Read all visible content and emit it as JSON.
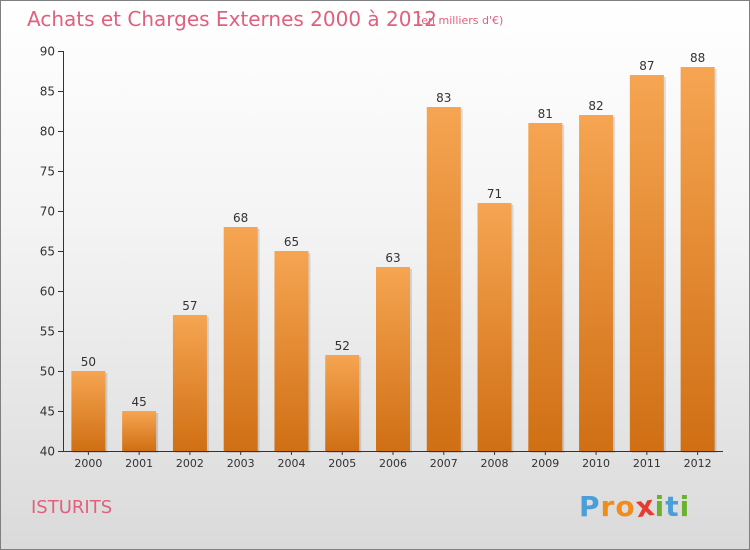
{
  "chart_data": {
    "type": "bar",
    "title": "Achats et Charges Externes 2000 à 2012",
    "subtitle": "(en milliers d'€)",
    "categories": [
      "2000",
      "2001",
      "2002",
      "2003",
      "2004",
      "2005",
      "2006",
      "2007",
      "2008",
      "2009",
      "2010",
      "2011",
      "2012"
    ],
    "values": [
      50,
      45,
      57,
      68,
      65,
      52,
      63,
      83,
      71,
      81,
      82,
      87,
      88
    ],
    "ylim": [
      40,
      90
    ],
    "yticks": [
      40,
      45,
      50,
      55,
      60,
      65,
      70,
      75,
      80,
      85,
      90
    ],
    "grid": false,
    "bar_color_top": "#f6a552",
    "bar_color_bottom": "#d06f14"
  },
  "commune": "ISTURITS",
  "logo": {
    "text": "Proxiti",
    "letters": [
      "P",
      "r",
      "o",
      "x",
      "i",
      "t",
      "i"
    ],
    "colors": [
      "#4a9fd8",
      "#f08c1e",
      "#f08c1e",
      "#e63b2e",
      "#6ab22e",
      "#4a9fd8",
      "#6ab22e"
    ]
  },
  "colors": {
    "title": "#e0607e",
    "axis": "#333333",
    "tick_text": "#333333"
  }
}
